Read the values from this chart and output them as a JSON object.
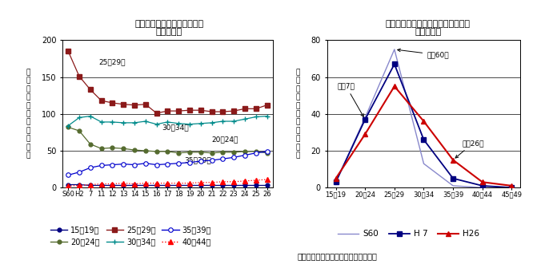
{
  "left_title1": "母の年齢階級別出生率の推移",
  "left_title2": "（熊本県）",
  "left_ylabel": "年\n齢\n階\n級\n別\n女\n子\n人\n口\n千\n対",
  "left_ylim": [
    0,
    200
  ],
  "left_yticks": [
    0,
    50,
    100,
    150,
    200
  ],
  "left_x_labels": [
    "S60",
    "H2",
    "7",
    "11",
    "12",
    "13",
    "14",
    "15",
    "16",
    "17",
    "18",
    "19",
    "20",
    "21",
    "22",
    "23",
    "24",
    "25",
    "26"
  ],
  "left_x_numeric": [
    0,
    1,
    2,
    3,
    4,
    5,
    6,
    7,
    8,
    9,
    10,
    11,
    12,
    13,
    14,
    15,
    16,
    17,
    18
  ],
  "age15_19": [
    4,
    4,
    3,
    3,
    3,
    3,
    3,
    3,
    3,
    3,
    3,
    3,
    3,
    3,
    3,
    3,
    3,
    3,
    3
  ],
  "age20_24": [
    82,
    77,
    59,
    53,
    54,
    53,
    51,
    50,
    49,
    49,
    47,
    48,
    48,
    47,
    48,
    48,
    49,
    49,
    47
  ],
  "age25_29": [
    185,
    151,
    133,
    118,
    115,
    113,
    112,
    113,
    101,
    104,
    104,
    105,
    105,
    103,
    103,
    104,
    107,
    107,
    112
  ],
  "age30_34": [
    84,
    95,
    97,
    89,
    89,
    88,
    88,
    90,
    86,
    89,
    87,
    86,
    87,
    88,
    90,
    90,
    93,
    96,
    97
  ],
  "age35_39": [
    17,
    21,
    27,
    30,
    31,
    32,
    31,
    33,
    31,
    32,
    33,
    34,
    36,
    37,
    39,
    41,
    44,
    47,
    49
  ],
  "age40_44": [
    2,
    3,
    4,
    5,
    5,
    6,
    5,
    6,
    6,
    6,
    6,
    6,
    7,
    7,
    8,
    8,
    9,
    10,
    11
  ],
  "right_title1": "母の年齢階級別第１子出生率の推移",
  "right_title2": "（熊本県）",
  "right_ylabel": "年\n齢\n階\n級\n別\n女\n子\n人\n口\n千\n対",
  "right_ylim": [
    0,
    80
  ],
  "right_yticks": [
    0,
    20,
    40,
    60,
    80
  ],
  "right_x_labels": [
    "15～19",
    "20～24",
    "25～29",
    "30～34",
    "35～39",
    "40～44",
    "45～49"
  ],
  "right_x_numeric": [
    0,
    1,
    2,
    3,
    4,
    5,
    6
  ],
  "s60": [
    3,
    38,
    75,
    13,
    1,
    0,
    0
  ],
  "h7": [
    3,
    37,
    67,
    26,
    5,
    1,
    0
  ],
  "h26": [
    5,
    29,
    55,
    36,
    15,
    3,
    1
  ],
  "ann_25_29": "25～29歳",
  "ann_30_34": "30～34歳",
  "ann_20_24": "20～24歳",
  "ann_35_39": "35～39歳",
  "ann_showa": "昭和60年",
  "ann_h7": "平成7年",
  "ann_h26": "平成26年",
  "leg1_15": "15～19歳",
  "leg1_20": "20～24歳",
  "leg1_25": "25～29歳",
  "leg1_30": "30～34歳",
  "leg1_35": "35～39歳",
  "leg1_40": "40～44歳",
  "leg2_s60": "S60",
  "leg2_h7": "H 7",
  "leg2_h26": "H26",
  "source": "資料）　厚生労働省「人口動態統計」",
  "color_15_19": "#000080",
  "color_20_24": "#556B2F",
  "color_25_29": "#8B1A1A",
  "color_30_34": "#008B8B",
  "color_35_39": "#0000CD",
  "color_40_44": "#FF0000",
  "color_s60": "#8888CC",
  "color_h7": "#000080",
  "color_h26": "#CC0000"
}
